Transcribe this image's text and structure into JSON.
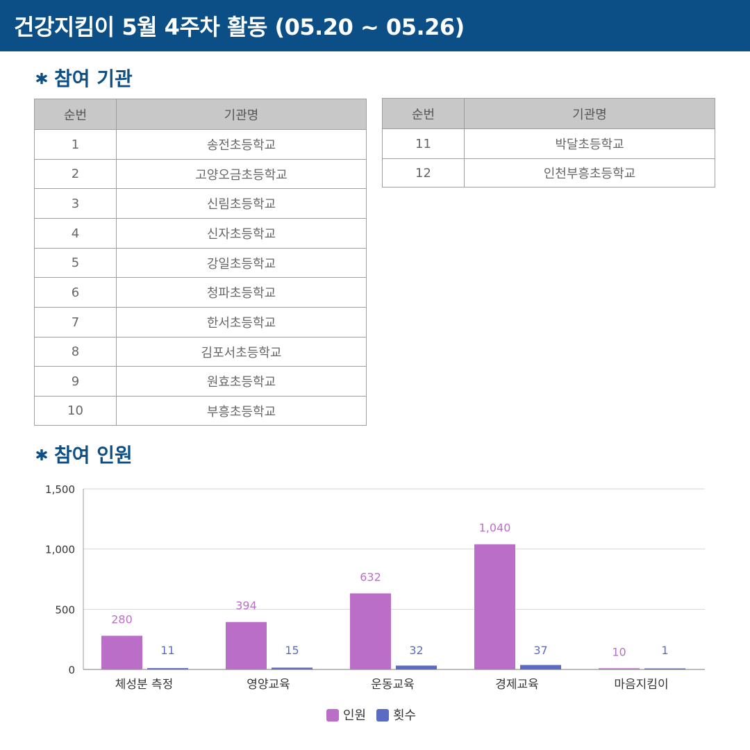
{
  "header": {
    "title": "건강지킴이 5월 4주차 활동 (05.20 ~ 05.26)"
  },
  "sections": {
    "institutions_title": "참여 기관",
    "participants_title": "참여 인원"
  },
  "colors": {
    "header_bg": "#0b4f86",
    "series_people": "#bb6ec8",
    "series_count": "#5b6bc4"
  },
  "table_left": {
    "headers": [
      "순번",
      "기관명"
    ],
    "rows": [
      [
        "1",
        "송전초등학교"
      ],
      [
        "2",
        "고양오금초등학교"
      ],
      [
        "3",
        "신림초등학교"
      ],
      [
        "4",
        "신자초등학교"
      ],
      [
        "5",
        "강일초등학교"
      ],
      [
        "6",
        "청파초등학교"
      ],
      [
        "7",
        "한서초등학교"
      ],
      [
        "8",
        "김포서초등학교"
      ],
      [
        "9",
        "원효초등학교"
      ],
      [
        "10",
        "부흥초등학교"
      ]
    ]
  },
  "table_right": {
    "headers": [
      "순번",
      "기관명"
    ],
    "rows": [
      [
        "11",
        "박달초등학교"
      ],
      [
        "12",
        "인천부흥초등학교"
      ]
    ]
  },
  "chart_data": {
    "type": "bar",
    "categories": [
      "체성분 측정",
      "영양교육",
      "운동교육",
      "경제교육",
      "마음지킴이"
    ],
    "series": [
      {
        "name": "인원",
        "values": [
          280,
          394,
          632,
          1040,
          10
        ],
        "labels": [
          "280",
          "394",
          "632",
          "1,040",
          "10"
        ]
      },
      {
        "name": "횟수",
        "values": [
          11,
          15,
          32,
          37,
          1
        ],
        "labels": [
          "11",
          "15",
          "32",
          "37",
          "1"
        ]
      }
    ],
    "ylim": [
      0,
      1500
    ],
    "yticks": [
      0,
      500,
      1000,
      1500
    ],
    "ytick_labels": [
      "0",
      "500",
      "1,000",
      "1,500"
    ],
    "grid": true,
    "legend": "bottom-center",
    "title": "",
    "xlabel": "",
    "ylabel": ""
  }
}
